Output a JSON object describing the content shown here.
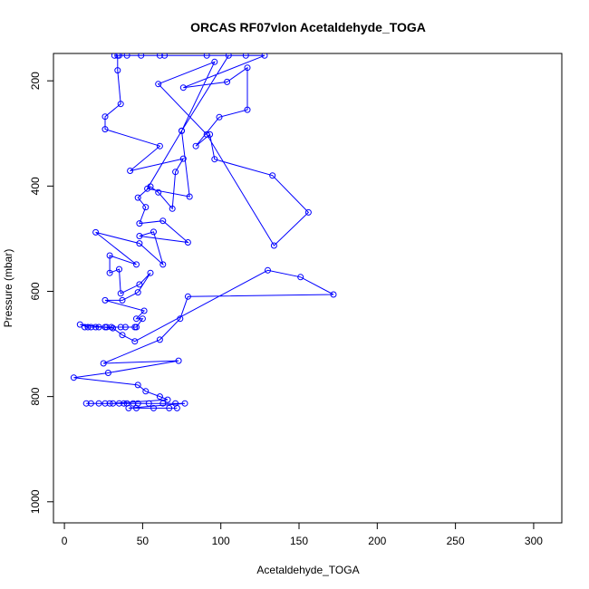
{
  "chart_data": {
    "type": "line",
    "title": "ORCAS RF07vlon Acetaldehyde_TOGA",
    "xlabel": "Acetaldehyde_TOGA",
    "ylabel": "Pressure (mbar)",
    "xlim": [
      -7,
      318
    ],
    "ylim": [
      1040,
      148
    ],
    "y_reversed": true,
    "x_ticks": [
      0,
      50,
      100,
      150,
      200,
      250,
      300
    ],
    "y_ticks": [
      200,
      400,
      600,
      800,
      1000
    ],
    "grid": false,
    "legend": "none",
    "series": [
      {
        "color": "#0000ff",
        "marker": "open-circle",
        "points": [
          [
            57,
            822
          ],
          [
            67,
            822
          ],
          [
            72,
            822
          ],
          [
            46,
            822
          ],
          [
            41,
            822
          ],
          [
            77,
            813
          ],
          [
            63,
            813
          ],
          [
            40,
            813
          ],
          [
            29,
            813
          ],
          [
            17,
            813
          ],
          [
            26,
            813
          ],
          [
            44,
            813
          ],
          [
            54,
            813
          ],
          [
            71,
            813
          ],
          [
            35,
            813
          ],
          [
            22,
            813
          ],
          [
            14,
            813
          ],
          [
            47,
            813
          ],
          [
            38,
            813
          ],
          [
            31,
            813
          ],
          [
            66,
            806
          ],
          [
            61,
            800
          ],
          [
            52,
            790
          ],
          [
            47,
            778
          ],
          [
            6,
            764
          ],
          [
            28,
            755
          ],
          [
            73,
            732
          ],
          [
            25,
            737
          ],
          [
            61,
            692
          ],
          [
            74,
            652
          ],
          [
            79,
            610
          ],
          [
            172,
            606
          ],
          [
            151,
            573
          ],
          [
            130,
            560
          ],
          [
            45,
            695
          ],
          [
            37,
            683
          ],
          [
            31,
            670
          ],
          [
            10,
            663
          ],
          [
            15,
            668
          ],
          [
            27,
            668
          ],
          [
            45,
            668
          ],
          [
            22,
            668
          ],
          [
            30,
            668
          ],
          [
            39,
            668
          ],
          [
            13,
            668
          ],
          [
            20,
            668
          ],
          [
            36,
            668
          ],
          [
            26,
            668
          ],
          [
            17,
            668
          ],
          [
            46,
            668
          ],
          [
            50,
            652
          ],
          [
            46,
            652
          ],
          [
            51,
            637
          ],
          [
            26,
            617
          ],
          [
            37,
            617
          ],
          [
            47,
            602
          ],
          [
            55,
            565
          ],
          [
            48,
            587
          ],
          [
            36,
            604
          ],
          [
            35,
            558
          ],
          [
            29,
            565
          ],
          [
            29,
            532
          ],
          [
            46,
            549
          ],
          [
            20,
            488
          ],
          [
            48,
            509
          ],
          [
            63,
            549
          ],
          [
            57,
            487
          ],
          [
            48,
            495
          ],
          [
            79,
            507
          ],
          [
            63,
            466
          ],
          [
            48,
            471
          ],
          [
            52,
            440
          ],
          [
            47,
            422
          ],
          [
            55,
            401
          ],
          [
            60,
            412
          ],
          [
            69,
            443
          ],
          [
            71,
            373
          ],
          [
            76,
            348
          ],
          [
            42,
            371
          ],
          [
            61,
            324
          ],
          [
            26,
            292
          ],
          [
            26,
            268
          ],
          [
            36,
            244
          ],
          [
            34,
            180
          ],
          [
            34,
            152
          ],
          [
            40,
            152
          ],
          [
            35,
            152
          ],
          [
            32,
            152
          ],
          [
            49,
            152
          ],
          [
            61,
            152
          ],
          [
            64,
            152
          ],
          [
            91,
            152
          ],
          [
            116,
            152
          ],
          [
            128,
            152
          ],
          [
            76,
            213
          ],
          [
            104,
            202
          ],
          [
            117,
            175
          ],
          [
            117,
            255
          ],
          [
            99,
            269
          ],
          [
            84,
            324
          ],
          [
            93,
            302
          ],
          [
            96,
            349
          ],
          [
            133,
            380
          ],
          [
            156,
            450
          ],
          [
            134,
            513
          ],
          [
            91,
            302
          ],
          [
            60,
            206
          ],
          [
            96,
            164
          ],
          [
            75,
            295
          ],
          [
            80,
            420
          ],
          [
            53,
            405
          ],
          [
            75,
            295
          ],
          [
            105,
            152
          ]
        ]
      }
    ]
  }
}
